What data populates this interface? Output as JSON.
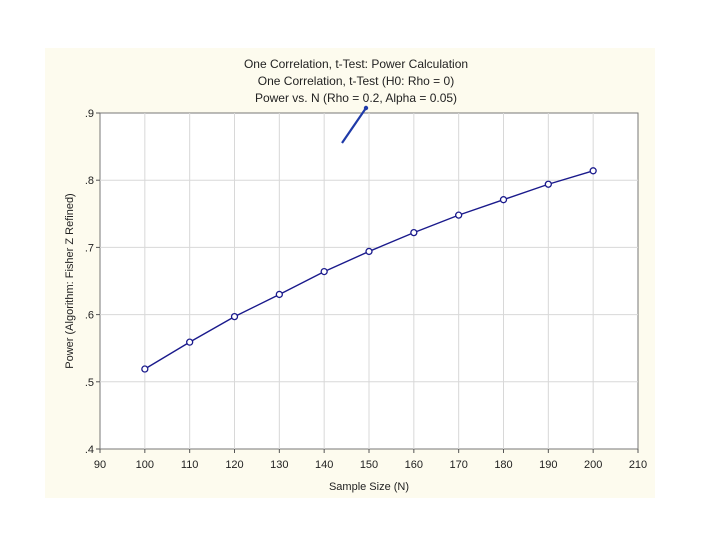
{
  "chart_data": {
    "type": "line",
    "title_lines": [
      "One Correlation, t-Test: Power Calculation",
      "One Correlation, t-Test (H0:  Rho =  0)",
      "Power vs. N (Rho = 0.2,  Alpha = 0.05)"
    ],
    "xlabel": "Sample Size (N)",
    "ylabel": "Power (Algorithm: Fisher Z Refined)",
    "xlim": [
      90,
      210
    ],
    "ylim": [
      0.4,
      0.9
    ],
    "x_ticks": [
      90,
      100,
      110,
      120,
      130,
      140,
      150,
      160,
      170,
      180,
      190,
      200,
      210
    ],
    "x_tick_labels": [
      "90",
      "100",
      "110",
      "120",
      "130",
      "140",
      "150",
      "160",
      "170",
      "180",
      "190",
      "200",
      "210"
    ],
    "y_ticks": [
      0.4,
      0.5,
      0.6,
      0.7,
      0.8,
      0.9
    ],
    "y_tick_labels": [
      ".4",
      ".5",
      ".6",
      ".7",
      ".8",
      ".9"
    ],
    "grid": true,
    "series": [
      {
        "x": [
          100,
          110,
          120,
          130,
          140,
          150,
          160,
          170,
          180,
          190,
          200
        ],
        "y": [
          0.519,
          0.559,
          0.597,
          0.63,
          0.664,
          0.694,
          0.722,
          0.748,
          0.771,
          0.794,
          0.814
        ],
        "color": "#1a1a8c"
      }
    ],
    "colors": {
      "background": "#fdfbee",
      "plot_background": "#ffffff",
      "grid": "#d8d8d8",
      "line": "#1a1a8c",
      "annotation": "#1f3aa8"
    }
  }
}
